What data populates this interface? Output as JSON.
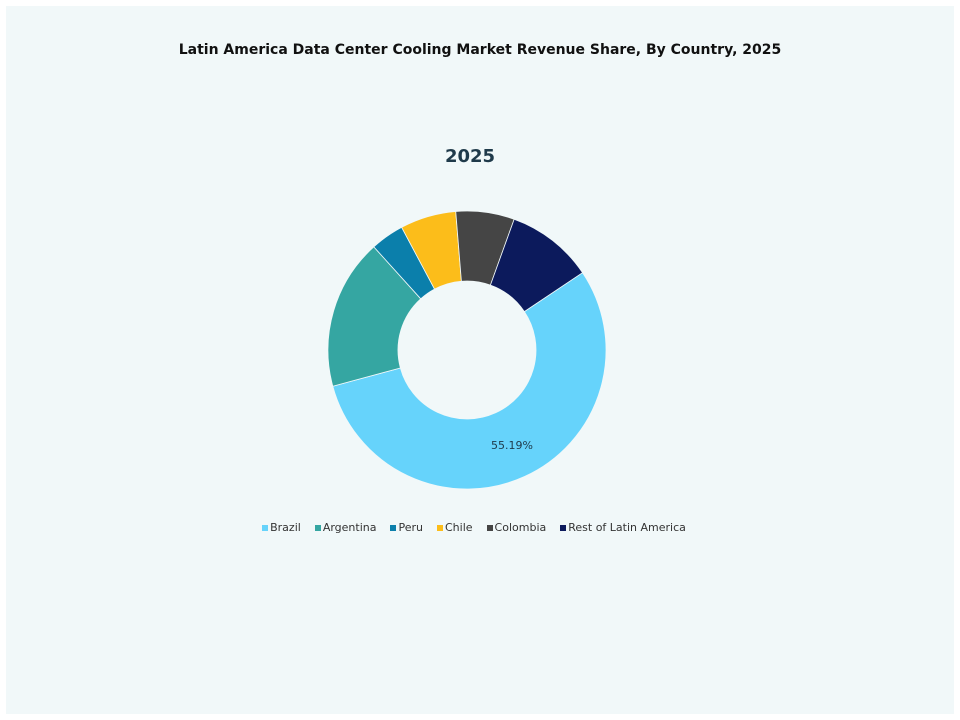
{
  "chart_data": {
    "type": "pie",
    "donut": true,
    "title": "Latin America Data Center Cooling Market Revenue Share, By Country, 2025",
    "subtitle": "2025",
    "legend_position": "bottom",
    "slices": [
      {
        "name": "Brazil",
        "value": 55.19,
        "label": "55.19%",
        "color": "#66d3fb"
      },
      {
        "name": "Argentina",
        "value": 17.5,
        "label": "",
        "color": "#35a6a2"
      },
      {
        "name": "Peru",
        "value": 3.9,
        "label": "",
        "color": "#0b7fab"
      },
      {
        "name": "Chile",
        "value": 6.5,
        "label": "",
        "color": "#fcbd1a"
      },
      {
        "name": "Colombia",
        "value": 6.8,
        "label": "",
        "color": "#454545"
      },
      {
        "name": "Rest of Latin America",
        "value": 10.1,
        "label": "",
        "color": "#0c1a5c"
      }
    ]
  }
}
